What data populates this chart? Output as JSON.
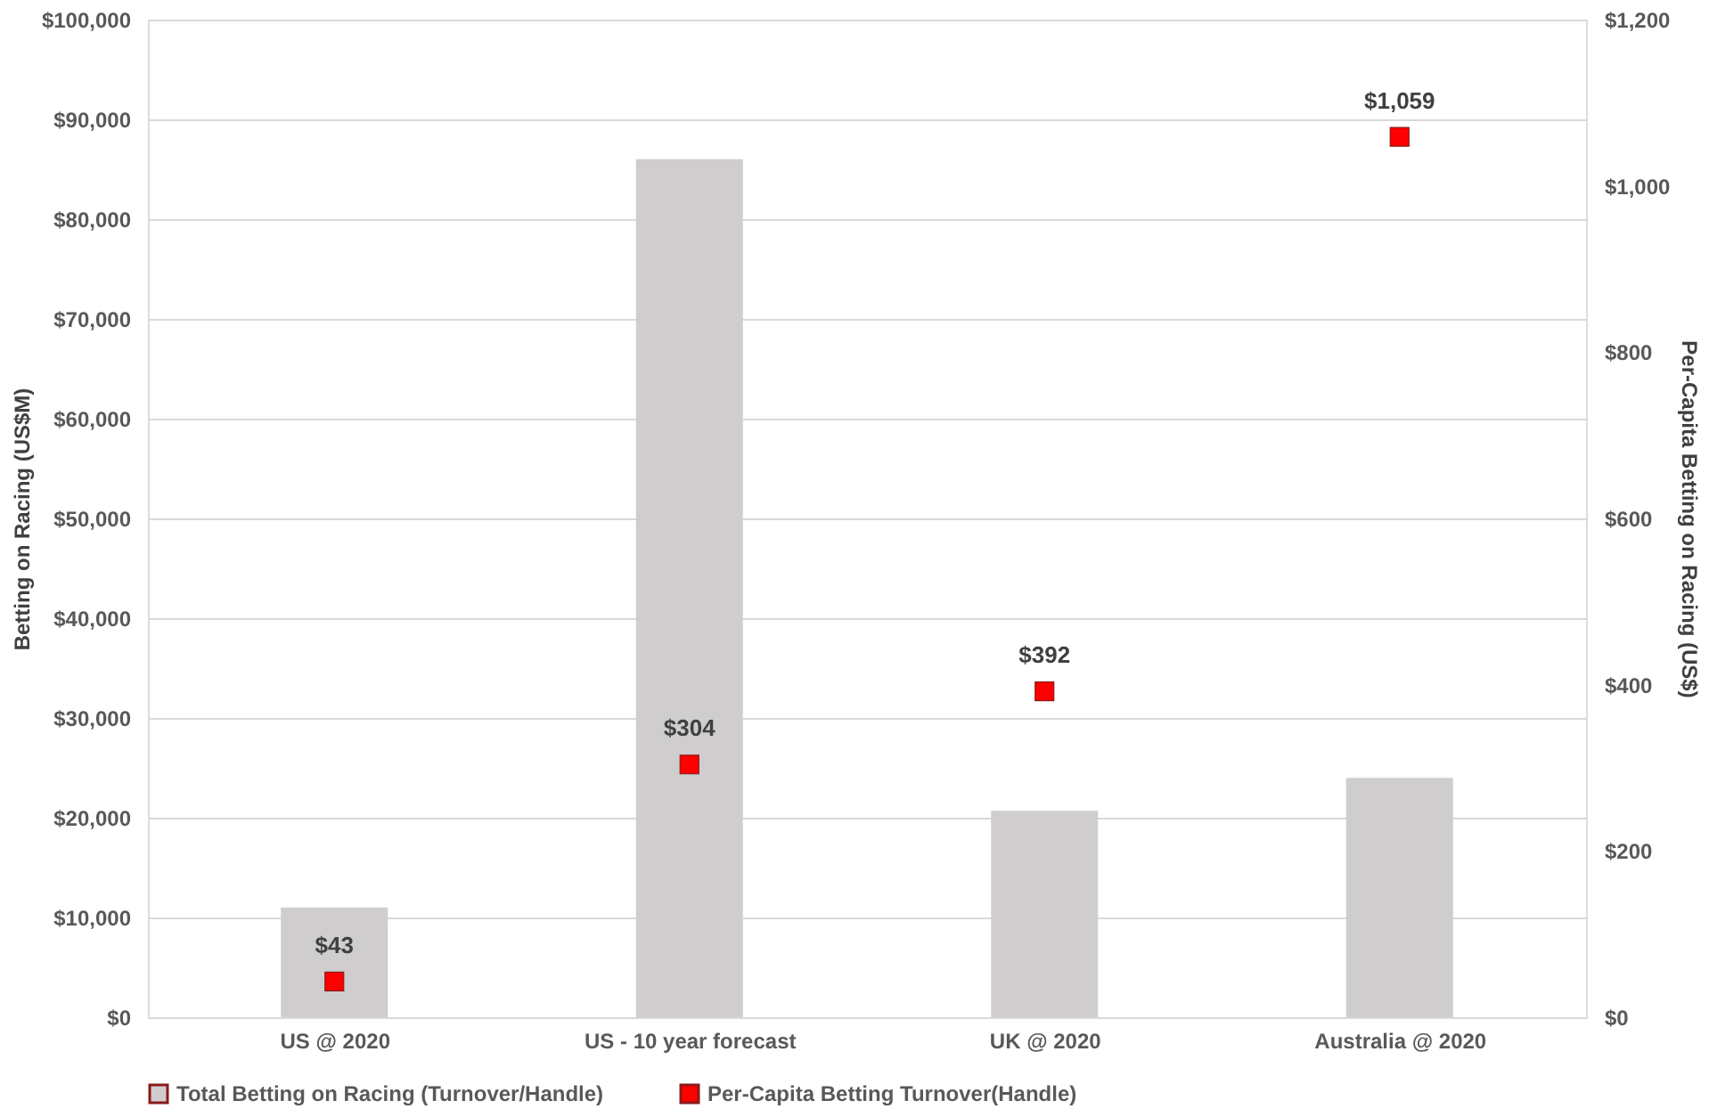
{
  "chart_data": {
    "type": "bar",
    "categories": [
      "US @ 2020",
      "US - 10 year forecast",
      "UK @ 2020",
      "Australia @ 2020"
    ],
    "ylabel": "Betting on Racing (US$M)",
    "y2label": "Per-Capita Betting on Racing (US$)",
    "series": [
      {
        "name": "Total Betting on Racing (Turnover/Handle)",
        "color": "#cfcdce",
        "values": [
          11000,
          86000,
          20700,
          24000
        ]
      },
      {
        "name": "Per-Capita Betting Turnover(Handle)",
        "color": "#ff0000",
        "type": "scatter",
        "axis": "y2",
        "values": [
          43,
          304,
          392,
          1059
        ],
        "value_labels": [
          "$43",
          "$304",
          "$392",
          "$1,059"
        ]
      }
    ],
    "ylim": [
      0,
      100000
    ],
    "yticks": [
      {
        "value": 0,
        "label": "$0"
      },
      {
        "value": 10000,
        "label": "$10,000"
      },
      {
        "value": 20000,
        "label": "$20,000"
      },
      {
        "value": 30000,
        "label": "$30,000"
      },
      {
        "value": 40000,
        "label": "$40,000"
      },
      {
        "value": 50000,
        "label": "$50,000"
      },
      {
        "value": 60000,
        "label": "$60,000"
      },
      {
        "value": 70000,
        "label": "$70,000"
      },
      {
        "value": 80000,
        "label": "$80,000"
      },
      {
        "value": 90000,
        "label": "$90,000"
      },
      {
        "value": 100000,
        "label": "$100,000"
      }
    ],
    "y2lim": [
      0,
      1200
    ],
    "y2ticks": [
      {
        "value": 0,
        "label": "$0"
      },
      {
        "value": 200,
        "label": "$200"
      },
      {
        "value": 400,
        "label": "$400"
      },
      {
        "value": 600,
        "label": "$600"
      },
      {
        "value": 800,
        "label": "$800"
      },
      {
        "value": 1000,
        "label": "$1,000"
      },
      {
        "value": 1200,
        "label": "$1,200"
      }
    ],
    "grid": "y",
    "legend": "bottom",
    "marker": "square"
  }
}
